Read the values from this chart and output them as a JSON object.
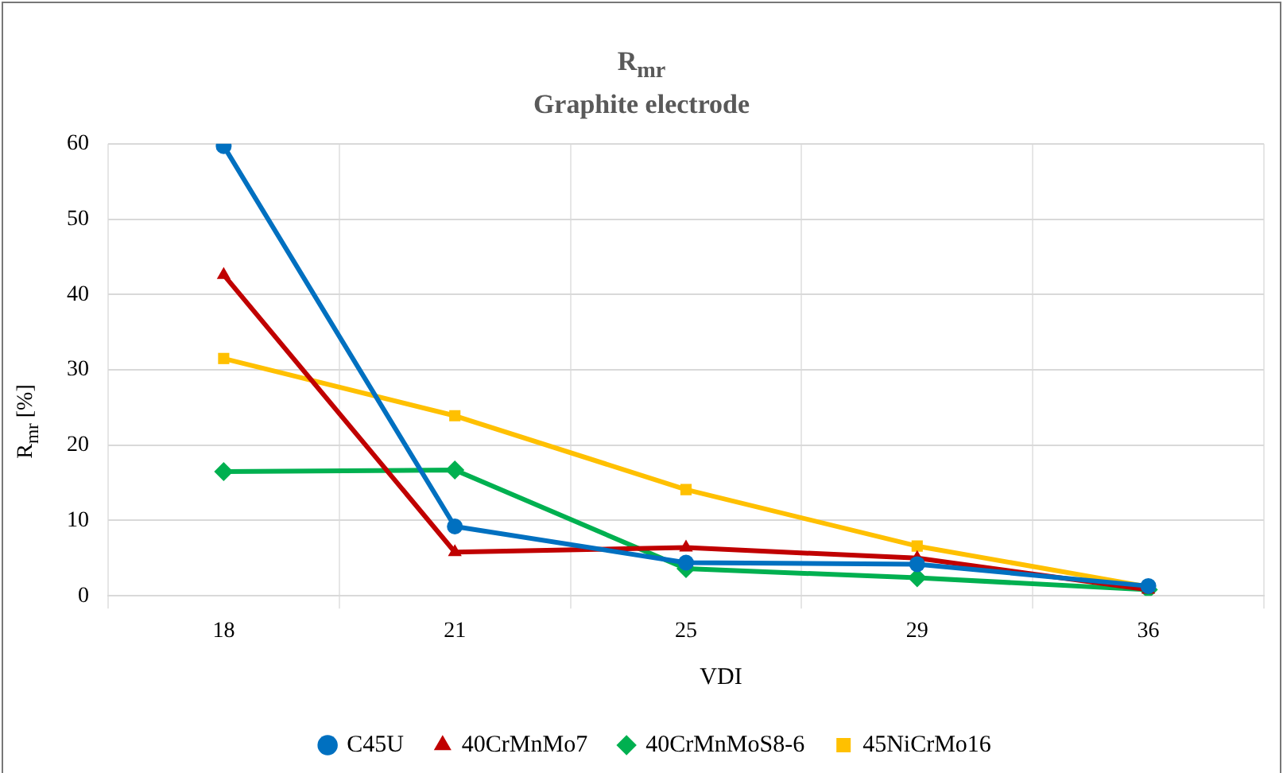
{
  "chart_data": {
    "type": "line",
    "title": "R$_{mr}$\nGraphite electrode",
    "xlabel": "VDI",
    "ylabel": "R$_{mr}$ [%]",
    "categories": [
      "18",
      "21",
      "25",
      "29",
      "36"
    ],
    "series": [
      {
        "name": "C45U",
        "color": "#0070c0",
        "marker": "circle",
        "values": [
          59.7,
          9.2,
          4.4,
          4.2,
          1.3
        ]
      },
      {
        "name": "40CrMnMo7",
        "color": "#c00000",
        "marker": "triangle",
        "values": [
          42.6,
          5.8,
          6.4,
          5.0,
          0.8
        ]
      },
      {
        "name": "40CrMnMoS8-6",
        "color": "#00b050",
        "marker": "diamond",
        "values": [
          16.5,
          16.7,
          3.6,
          2.4,
          0.8
        ]
      },
      {
        "name": "45NiCrMo16",
        "color": "#ffc000",
        "marker": "square",
        "values": [
          31.5,
          23.9,
          14.1,
          6.6,
          1.2
        ]
      }
    ],
    "ylim": [
      0,
      60
    ],
    "yticks": [
      0,
      10,
      20,
      30,
      40,
      50,
      60
    ],
    "grid": true,
    "legend": "bottom",
    "line_style": "solid"
  }
}
